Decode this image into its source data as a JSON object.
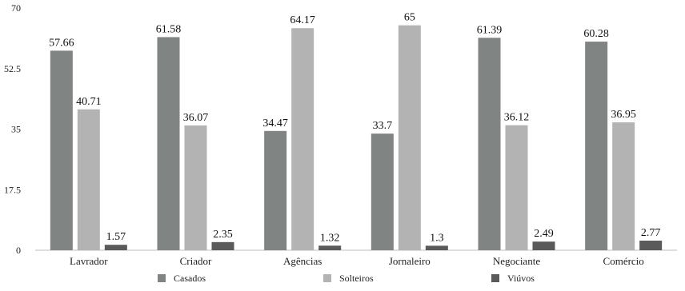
{
  "chart_data": {
    "type": "bar",
    "title": "",
    "xlabel": "",
    "ylabel": "",
    "categories": [
      "Lavrador",
      "Criador",
      "Agências",
      "Jornaleiro",
      "Negociante",
      "Comércio"
    ],
    "series": [
      {
        "name": "Casados",
        "values": [
          57.66,
          61.58,
          34.47,
          33.7,
          61.39,
          60.28
        ],
        "color": "#808482"
      },
      {
        "name": "Solteiros",
        "values": [
          40.71,
          36.07,
          64.17,
          65,
          36.12,
          36.95
        ],
        "color": "#b3b3b3"
      },
      {
        "name": "Viúvos",
        "values": [
          1.57,
          2.35,
          1.32,
          1.3,
          2.49,
          2.77
        ],
        "color": "#5a5a5a"
      }
    ],
    "ylim": [
      0,
      70
    ],
    "yticks": [
      0,
      17.5,
      35,
      52.5,
      70
    ],
    "grid": false,
    "legend_position": "bottom",
    "data_labels": true
  }
}
